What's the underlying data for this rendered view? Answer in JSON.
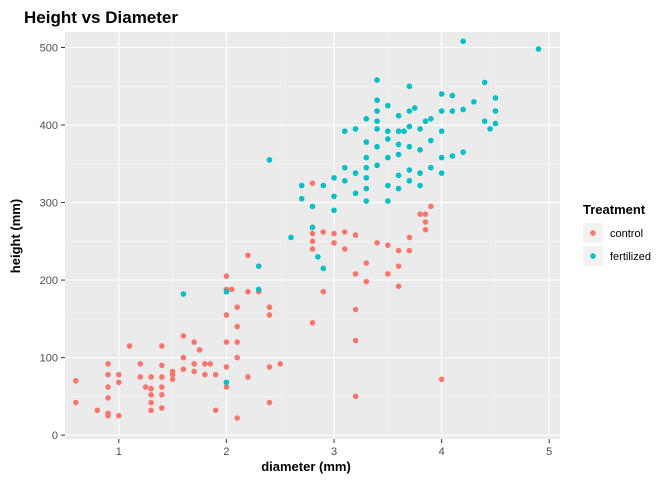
{
  "chart_data": {
    "type": "scatter",
    "title": "Height vs Diameter",
    "xlabel": "diameter (mm)",
    "ylabel": "height (mm)",
    "xlim": [
      0.5,
      5.1
    ],
    "ylim": [
      -5,
      520
    ],
    "xticks": [
      1,
      2,
      3,
      4,
      5
    ],
    "yticks": [
      0,
      100,
      200,
      300,
      400,
      500
    ],
    "grid": true,
    "legend": {
      "title": "Treatment",
      "placement": "right"
    },
    "series": [
      {
        "name": "control",
        "color": "#f8766d",
        "points": [
          [
            0.6,
            70
          ],
          [
            0.6,
            42
          ],
          [
            0.8,
            32
          ],
          [
            0.9,
            92
          ],
          [
            0.9,
            78
          ],
          [
            0.9,
            62
          ],
          [
            0.9,
            48
          ],
          [
            0.9,
            28
          ],
          [
            0.9,
            25
          ],
          [
            1.0,
            78
          ],
          [
            1.0,
            68
          ],
          [
            1.0,
            25
          ],
          [
            1.1,
            115
          ],
          [
            1.2,
            92
          ],
          [
            1.2,
            75
          ],
          [
            1.25,
            62
          ],
          [
            1.3,
            75
          ],
          [
            1.3,
            60
          ],
          [
            1.3,
            52
          ],
          [
            1.3,
            42
          ],
          [
            1.3,
            32
          ],
          [
            1.4,
            115
          ],
          [
            1.4,
            90
          ],
          [
            1.4,
            75
          ],
          [
            1.4,
            62
          ],
          [
            1.4,
            52
          ],
          [
            1.4,
            35
          ],
          [
            1.5,
            82
          ],
          [
            1.5,
            78
          ],
          [
            1.5,
            72
          ],
          [
            1.6,
            128
          ],
          [
            1.6,
            100
          ],
          [
            1.6,
            85
          ],
          [
            1.7,
            120
          ],
          [
            1.7,
            92
          ],
          [
            1.7,
            82
          ],
          [
            1.75,
            110
          ],
          [
            1.8,
            92
          ],
          [
            1.8,
            78
          ],
          [
            1.85,
            92
          ],
          [
            1.9,
            78
          ],
          [
            1.9,
            32
          ],
          [
            2.0,
            205
          ],
          [
            2.0,
            188
          ],
          [
            2.0,
            155
          ],
          [
            2.0,
            120
          ],
          [
            2.0,
            88
          ],
          [
            2.0,
            62
          ],
          [
            2.05,
            188
          ],
          [
            2.1,
            165
          ],
          [
            2.1,
            140
          ],
          [
            2.1,
            120
          ],
          [
            2.1,
            100
          ],
          [
            2.1,
            22
          ],
          [
            2.2,
            232
          ],
          [
            2.2,
            185
          ],
          [
            2.2,
            75
          ],
          [
            2.3,
            185
          ],
          [
            2.4,
            165
          ],
          [
            2.4,
            155
          ],
          [
            2.4,
            88
          ],
          [
            2.4,
            42
          ],
          [
            2.5,
            92
          ],
          [
            2.8,
            325
          ],
          [
            2.8,
            260
          ],
          [
            2.8,
            250
          ],
          [
            2.8,
            240
          ],
          [
            2.8,
            145
          ],
          [
            2.9,
            185
          ],
          [
            2.9,
            262
          ],
          [
            3.0,
            260
          ],
          [
            3.0,
            248
          ],
          [
            3.1,
            240
          ],
          [
            3.1,
            262
          ],
          [
            3.2,
            258
          ],
          [
            3.2,
            208
          ],
          [
            3.2,
            162
          ],
          [
            3.2,
            122
          ],
          [
            3.2,
            50
          ],
          [
            3.3,
            222
          ],
          [
            3.3,
            198
          ],
          [
            3.4,
            248
          ],
          [
            3.5,
            245
          ],
          [
            3.5,
            208
          ],
          [
            3.6,
            238
          ],
          [
            3.6,
            218
          ],
          [
            3.6,
            192
          ],
          [
            3.7,
            255
          ],
          [
            3.7,
            238
          ],
          [
            3.8,
            285
          ],
          [
            3.85,
            275
          ],
          [
            3.85,
            265
          ],
          [
            3.85,
            285
          ],
          [
            3.9,
            295
          ],
          [
            4.0,
            72
          ]
        ]
      },
      {
        "name": "fertilized",
        "color": "#00bfc4",
        "points": [
          [
            1.6,
            182
          ],
          [
            2.0,
            185
          ],
          [
            2.0,
            68
          ],
          [
            2.3,
            218
          ],
          [
            2.3,
            188
          ],
          [
            2.4,
            355
          ],
          [
            2.6,
            255
          ],
          [
            2.7,
            322
          ],
          [
            2.7,
            305
          ],
          [
            2.8,
            295
          ],
          [
            2.8,
            268
          ],
          [
            2.85,
            230
          ],
          [
            2.9,
            215
          ],
          [
            2.9,
            322
          ],
          [
            3.0,
            332
          ],
          [
            3.0,
            308
          ],
          [
            3.0,
            290
          ],
          [
            3.1,
            392
          ],
          [
            3.1,
            345
          ],
          [
            3.1,
            328
          ],
          [
            3.2,
            395
          ],
          [
            3.2,
            338
          ],
          [
            3.2,
            312
          ],
          [
            3.3,
            408
          ],
          [
            3.3,
            378
          ],
          [
            3.3,
            358
          ],
          [
            3.3,
            345
          ],
          [
            3.3,
            332
          ],
          [
            3.3,
            318
          ],
          [
            3.3,
            302
          ],
          [
            3.4,
            458
          ],
          [
            3.4,
            432
          ],
          [
            3.4,
            418
          ],
          [
            3.4,
            405
          ],
          [
            3.4,
            395
          ],
          [
            3.4,
            372
          ],
          [
            3.4,
            348
          ],
          [
            3.5,
            425
          ],
          [
            3.5,
            392
          ],
          [
            3.5,
            382
          ],
          [
            3.5,
            358
          ],
          [
            3.5,
            322
          ],
          [
            3.5,
            302
          ],
          [
            3.6,
            412
          ],
          [
            3.6,
            392
          ],
          [
            3.6,
            375
          ],
          [
            3.6,
            362
          ],
          [
            3.6,
            335
          ],
          [
            3.6,
            318
          ],
          [
            3.65,
            392
          ],
          [
            3.7,
            450
          ],
          [
            3.7,
            418
          ],
          [
            3.7,
            398
          ],
          [
            3.7,
            372
          ],
          [
            3.7,
            342
          ],
          [
            3.7,
            328
          ],
          [
            3.75,
            422
          ],
          [
            3.8,
            395
          ],
          [
            3.8,
            368
          ],
          [
            3.8,
            338
          ],
          [
            3.8,
            322
          ],
          [
            3.85,
            405
          ],
          [
            3.9,
            408
          ],
          [
            3.9,
            380
          ],
          [
            3.9,
            345
          ],
          [
            4.0,
            440
          ],
          [
            4.0,
            418
          ],
          [
            4.0,
            392
          ],
          [
            4.0,
            358
          ],
          [
            4.0,
            338
          ],
          [
            4.1,
            438
          ],
          [
            4.1,
            418
          ],
          [
            4.1,
            360
          ],
          [
            4.2,
            508
          ],
          [
            4.2,
            420
          ],
          [
            4.2,
            365
          ],
          [
            4.3,
            430
          ],
          [
            4.4,
            455
          ],
          [
            4.4,
            405
          ],
          [
            4.45,
            395
          ],
          [
            4.5,
            435
          ],
          [
            4.5,
            418
          ],
          [
            4.5,
            402
          ],
          [
            4.9,
            498
          ]
        ]
      }
    ]
  }
}
